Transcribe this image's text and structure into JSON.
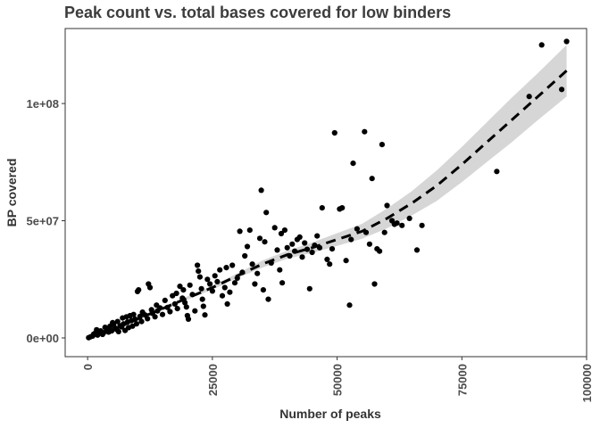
{
  "chart_data": {
    "type": "scatter",
    "title": "Peak count vs. total bases covered for low binders",
    "xlabel": "Number of peaks",
    "ylabel": "BP covered",
    "xlim": [
      -4500,
      100000
    ],
    "ylim": [
      -8000000,
      132000000
    ],
    "x_ticks": [
      0,
      25000,
      50000,
      75000,
      100000
    ],
    "x_tick_labels": [
      "0",
      "25000",
      "50000",
      "75000",
      "100000"
    ],
    "y_ticks": [
      0,
      50000000,
      100000000
    ],
    "y_tick_labels": [
      "0e+00",
      "5e+07",
      "1e+08"
    ],
    "grid": false,
    "trend": {
      "style": "dashed",
      "x": [
        0,
        5000,
        10000,
        15000,
        20000,
        25000,
        30000,
        35000,
        40000,
        45000,
        50000,
        55000,
        60000,
        65000,
        70000,
        75000,
        80000,
        85000,
        90000,
        96000
      ],
      "y": [
        0,
        3500000,
        8000000,
        12500000,
        17000000,
        21500000,
        26500000,
        31500000,
        35500000,
        38500000,
        42000000,
        45500000,
        51000000,
        57500000,
        65000000,
        74000000,
        83500000,
        93000000,
        102500000,
        114000000
      ],
      "lower": [
        0,
        3000000,
        7300000,
        11800000,
        16300000,
        20700000,
        25500000,
        30000000,
        33800000,
        36300000,
        39300000,
        42300000,
        46800000,
        52300000,
        58500000,
        66500000,
        75000000,
        83500000,
        92500000,
        103000000
      ],
      "upper": [
        500000,
        4200000,
        8700000,
        13200000,
        17700000,
        22300000,
        27500000,
        33000000,
        37200000,
        40700000,
        44700000,
        48700000,
        55200000,
        62700000,
        71500000,
        81500000,
        92000000,
        102500000,
        112500000,
        125000000
      ]
    },
    "points": [
      [
        200,
        100000
      ],
      [
        600,
        500000
      ],
      [
        1000,
        800000
      ],
      [
        1200,
        1600000
      ],
      [
        1500,
        2000000
      ],
      [
        1800,
        3500000
      ],
      [
        2000,
        1200000
      ],
      [
        2300,
        2800000
      ],
      [
        2600,
        3000000
      ],
      [
        3000,
        1500000
      ],
      [
        3200,
        2200000
      ],
      [
        3500,
        4500000
      ],
      [
        3800,
        3300000
      ],
      [
        4000,
        4000000
      ],
      [
        4200,
        2500000
      ],
      [
        4500,
        5000000
      ],
      [
        4800,
        3000000
      ],
      [
        5000,
        6500000
      ],
      [
        5200,
        5800000
      ],
      [
        5500,
        4200000
      ],
      [
        5800,
        3600000
      ],
      [
        6000,
        7000000
      ],
      [
        6200,
        2700000
      ],
      [
        6500,
        5200000
      ],
      [
        6800,
        4700000
      ],
      [
        7000,
        8500000
      ],
      [
        7200,
        6000000
      ],
      [
        7500,
        3200000
      ],
      [
        7800,
        9000000
      ],
      [
        8000,
        6800000
      ],
      [
        8200,
        4400000
      ],
      [
        8500,
        9500000
      ],
      [
        8800,
        7400000
      ],
      [
        9000,
        5000000
      ],
      [
        9200,
        10000000
      ],
      [
        9500,
        8000000
      ],
      [
        9800,
        6000000
      ],
      [
        10000,
        19800000
      ],
      [
        10200,
        20500000
      ],
      [
        10500,
        9200000
      ],
      [
        10800,
        7000000
      ],
      [
        11000,
        11000000
      ],
      [
        11500,
        9800000
      ],
      [
        12000,
        8200000
      ],
      [
        12200,
        23000000
      ],
      [
        12500,
        21500000
      ],
      [
        12800,
        12000000
      ],
      [
        13000,
        10500000
      ],
      [
        13500,
        9000000
      ],
      [
        13800,
        14000000
      ],
      [
        14000,
        11500000
      ],
      [
        14500,
        12800000
      ],
      [
        15000,
        10000000
      ],
      [
        15500,
        16000000
      ],
      [
        16000,
        13000000
      ],
      [
        16500,
        11200000
      ],
      [
        17000,
        18000000
      ],
      [
        17500,
        14500000
      ],
      [
        17800,
        19000000
      ],
      [
        18000,
        12500000
      ],
      [
        18500,
        22000000
      ],
      [
        19000,
        17000000
      ],
      [
        19200,
        20500000
      ],
      [
        19500,
        15000000
      ],
      [
        19800,
        13200000
      ],
      [
        20000,
        9500000
      ],
      [
        20200,
        8000000
      ],
      [
        20500,
        22500000
      ],
      [
        21000,
        18500000
      ],
      [
        21500,
        11500000
      ],
      [
        22000,
        31000000
      ],
      [
        22200,
        28500000
      ],
      [
        22500,
        26000000
      ],
      [
        22800,
        21000000
      ],
      [
        23000,
        16500000
      ],
      [
        23200,
        13500000
      ],
      [
        23500,
        9800000
      ],
      [
        24000,
        25000000
      ],
      [
        24500,
        23000000
      ],
      [
        25000,
        20000000
      ],
      [
        25500,
        26500000
      ],
      [
        26000,
        24000000
      ],
      [
        26500,
        29000000
      ],
      [
        27000,
        18000000
      ],
      [
        27500,
        21500000
      ],
      [
        27800,
        30000000
      ],
      [
        28000,
        14500000
      ],
      [
        28500,
        19500000
      ],
      [
        29000,
        31000000
      ],
      [
        29500,
        23500000
      ],
      [
        30000,
        25500000
      ],
      [
        30500,
        45500000
      ],
      [
        31000,
        28000000
      ],
      [
        31500,
        35000000
      ],
      [
        32000,
        39000000
      ],
      [
        32500,
        46000000
      ],
      [
        33000,
        31500000
      ],
      [
        33500,
        23000000
      ],
      [
        34000,
        27500000
      ],
      [
        34500,
        42500000
      ],
      [
        34800,
        63000000
      ],
      [
        35200,
        20500000
      ],
      [
        35500,
        41000000
      ],
      [
        35800,
        53500000
      ],
      [
        36200,
        16500000
      ],
      [
        36800,
        32000000
      ],
      [
        37500,
        47000000
      ],
      [
        38000,
        37500000
      ],
      [
        38500,
        29000000
      ],
      [
        38800,
        44500000
      ],
      [
        39000,
        23500000
      ],
      [
        39500,
        46000000
      ],
      [
        40000,
        38500000
      ],
      [
        40500,
        35000000
      ],
      [
        41000,
        40000000
      ],
      [
        41500,
        37000000
      ],
      [
        42000,
        42000000
      ],
      [
        42500,
        43000000
      ],
      [
        43000,
        34500000
      ],
      [
        43500,
        40500000
      ],
      [
        44000,
        37800000
      ],
      [
        44500,
        21000000
      ],
      [
        45000,
        36500000
      ],
      [
        45500,
        39500000
      ],
      [
        46000,
        43500000
      ],
      [
        46500,
        38500000
      ],
      [
        47000,
        55500000
      ],
      [
        48000,
        33500000
      ],
      [
        48500,
        31500000
      ],
      [
        49000,
        38000000
      ],
      [
        49500,
        87500000
      ],
      [
        50500,
        55000000
      ],
      [
        51000,
        55500000
      ],
      [
        51800,
        33000000
      ],
      [
        52500,
        14000000
      ],
      [
        52800,
        42000000
      ],
      [
        53200,
        74500000
      ],
      [
        54000,
        46500000
      ],
      [
        55500,
        88000000
      ],
      [
        55800,
        45000000
      ],
      [
        56500,
        40000000
      ],
      [
        57000,
        68000000
      ],
      [
        57500,
        23000000
      ],
      [
        58000,
        38000000
      ],
      [
        58500,
        37000000
      ],
      [
        59000,
        82500000
      ],
      [
        59500,
        45000000
      ],
      [
        60000,
        56500000
      ],
      [
        61000,
        50000000
      ],
      [
        61500,
        48500000
      ],
      [
        62000,
        49000000
      ],
      [
        63000,
        48000000
      ],
      [
        64500,
        51000000
      ],
      [
        66000,
        37500000
      ],
      [
        67000,
        48000000
      ],
      [
        82000,
        71000000
      ],
      [
        88500,
        103000000
      ],
      [
        91000,
        125000000
      ],
      [
        95000,
        106000000
      ],
      [
        96000,
        126500000
      ]
    ]
  }
}
